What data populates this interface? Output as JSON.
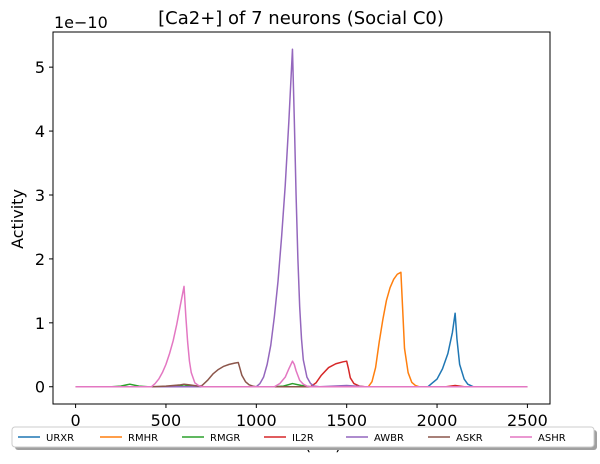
{
  "chart_data": {
    "type": "line",
    "title": "[Ca2+] of 7 neurons (Social C0)",
    "xlabel": "Time (ms)",
    "ylabel": "Activity",
    "y_offset_label": "1e−10",
    "xlim": [
      -125,
      2625
    ],
    "ylim": [
      -0.27,
      5.55
    ],
    "xticks": [
      0,
      500,
      1000,
      1500,
      2000,
      2500
    ],
    "yticks": [
      0,
      1,
      2,
      3,
      4,
      5
    ],
    "legend_placement": "bottom",
    "grid": false,
    "series": [
      {
        "name": "URXR",
        "color": "#1f77b4",
        "x": [
          0,
          1950,
          1970,
          2000,
          2030,
          2060,
          2085,
          2100,
          2110,
          2125,
          2150,
          2170,
          2200,
          2500
        ],
        "y": [
          0,
          0,
          0.05,
          0.12,
          0.28,
          0.52,
          0.85,
          1.15,
          0.75,
          0.35,
          0.12,
          0.04,
          0,
          0
        ]
      },
      {
        "name": "RMHR",
        "color": "#ff7f0e",
        "x": [
          0,
          1620,
          1640,
          1660,
          1680,
          1700,
          1720,
          1740,
          1760,
          1780,
          1800,
          1810,
          1820,
          1840,
          1860,
          1880,
          1900,
          2500
        ],
        "y": [
          0,
          0,
          0.08,
          0.3,
          0.7,
          1.05,
          1.35,
          1.55,
          1.68,
          1.76,
          1.79,
          1.2,
          0.6,
          0.22,
          0.07,
          0.02,
          0,
          0
        ]
      },
      {
        "name": "RMGR",
        "color": "#2ca02c",
        "x": [
          0,
          200,
          250,
          300,
          350,
          400,
          500,
          570,
          600,
          630,
          700,
          1100,
          1150,
          1200,
          1250,
          1300,
          2500
        ],
        "y": [
          0,
          0,
          0.01,
          0.04,
          0.01,
          0,
          0,
          0.01,
          0.03,
          0.01,
          0,
          0,
          0.01,
          0.05,
          0.02,
          0,
          0
        ]
      },
      {
        "name": "IL2R",
        "color": "#d62728",
        "x": [
          0,
          1300,
          1330,
          1360,
          1400,
          1440,
          1480,
          1500,
          1510,
          1520,
          1540,
          1570,
          1600,
          2050,
          2100,
          2150,
          2500
        ],
        "y": [
          0,
          0,
          0.06,
          0.18,
          0.3,
          0.36,
          0.39,
          0.4,
          0.28,
          0.14,
          0.05,
          0.01,
          0,
          0,
          0.02,
          0,
          0
        ]
      },
      {
        "name": "AWBR",
        "color": "#9467bd",
        "x": [
          0,
          1000,
          1020,
          1040,
          1060,
          1080,
          1100,
          1120,
          1140,
          1160,
          1180,
          1200,
          1210,
          1220,
          1230,
          1240,
          1250,
          1260,
          1280,
          1300,
          1320,
          1350,
          1500,
          1600,
          2500
        ],
        "y": [
          0,
          0,
          0.05,
          0.15,
          0.35,
          0.65,
          1.1,
          1.65,
          2.35,
          3.15,
          4.15,
          5.28,
          4.2,
          3.0,
          2.0,
          1.25,
          0.75,
          0.42,
          0.15,
          0.05,
          0.01,
          0,
          0.02,
          0,
          0
        ]
      },
      {
        "name": "ASKR",
        "color": "#8c564b",
        "x": [
          0,
          420,
          500,
          580,
          600,
          630,
          680,
          700,
          730,
          760,
          790,
          820,
          850,
          880,
          900,
          910,
          920,
          940,
          960,
          980,
          1000,
          2500
        ],
        "y": [
          0,
          0,
          0.01,
          0.03,
          0.04,
          0.03,
          0.01,
          0.02,
          0.1,
          0.2,
          0.27,
          0.32,
          0.35,
          0.37,
          0.38,
          0.28,
          0.18,
          0.08,
          0.03,
          0.01,
          0,
          0
        ]
      },
      {
        "name": "ASHR",
        "color": "#e377c2",
        "x": [
          0,
          420,
          440,
          460,
          480,
          500,
          520,
          540,
          560,
          580,
          600,
          610,
          620,
          630,
          640,
          660,
          680,
          700,
          800,
          1100,
          1130,
          1160,
          1180,
          1200,
          1210,
          1220,
          1240,
          1260,
          1280,
          1300,
          2500
        ],
        "y": [
          0,
          0,
          0.05,
          0.12,
          0.22,
          0.35,
          0.52,
          0.72,
          0.98,
          1.28,
          1.57,
          1.1,
          0.7,
          0.4,
          0.22,
          0.06,
          0.02,
          0,
          0,
          0,
          0.05,
          0.15,
          0.28,
          0.4,
          0.35,
          0.25,
          0.1,
          0.04,
          0.01,
          0,
          0
        ]
      }
    ]
  }
}
